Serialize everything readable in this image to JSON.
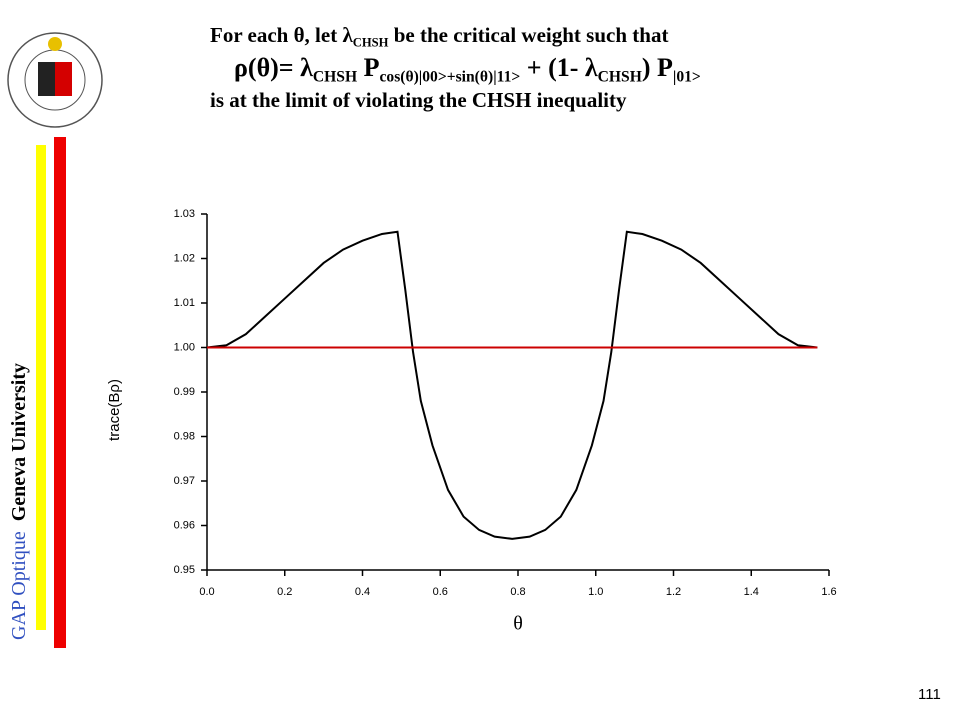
{
  "slide": {
    "title_lines": [
      [
        {
          "text": "For each θ, let λ"
        },
        {
          "sub": "CHSH"
        },
        {
          "text": " be the critical weight such that"
        }
      ],
      [
        {
          "text": "ρ(θ)= λ"
        },
        {
          "sub": "CHSH"
        },
        {
          "text": " P"
        },
        {
          "sub": "cos(θ)|00>+sin(θ)|11>"
        },
        {
          "text": " + (1- λ"
        },
        {
          "sub": "CHSH"
        },
        {
          "text": ") P"
        },
        {
          "sub": "|01>"
        }
      ],
      [
        {
          "text": "is at the limit of violating the CHSH inequality"
        }
      ]
    ],
    "side_group": "GAP Optique",
    "side_university": "Geneva University",
    "page_number": "111"
  },
  "chart_data": {
    "type": "line",
    "x_label": "θ",
    "y_label": "trace(Bρ)",
    "xlim": [
      0,
      1.6
    ],
    "ylim": [
      0.95,
      1.03
    ],
    "xticks": [
      {
        "value": 0,
        "label": "0.0"
      },
      0.2,
      0.4,
      0.6,
      0.8,
      {
        "value": 1,
        "label": "1.0"
      },
      1.2,
      1.4,
      1.6
    ],
    "yticks": [
      0.95,
      0.96,
      0.97,
      0.98,
      0.99,
      {
        "value": 1,
        "label": "1.00"
      },
      1.01,
      1.02,
      1.03
    ],
    "series": [
      {
        "color": "#000000",
        "x": [
          0,
          0.05,
          0.1,
          0.15,
          0.2,
          0.25,
          0.3,
          0.35,
          0.4,
          0.45,
          0.49,
          0.51,
          0.53,
          0.55,
          0.58,
          0.62,
          0.66,
          0.7,
          0.74,
          0.785,
          0.83,
          0.87,
          0.91,
          0.95,
          0.99,
          1.02,
          1.04,
          1.06,
          1.08,
          1.12,
          1.17,
          1.22,
          1.27,
          1.32,
          1.37,
          1.42,
          1.47,
          1.52,
          1.57
        ],
        "values": [
          1.0,
          1.0005,
          1.003,
          1.007,
          1.011,
          1.015,
          1.019,
          1.022,
          1.024,
          1.0255,
          1.026,
          1.013,
          0.999,
          0.988,
          0.978,
          0.968,
          0.962,
          0.959,
          0.9575,
          0.957,
          0.9575,
          0.959,
          0.962,
          0.968,
          0.978,
          0.988,
          0.999,
          1.013,
          1.026,
          1.0255,
          1.024,
          1.022,
          1.019,
          1.015,
          1.011,
          1.007,
          1.003,
          1.0005,
          1.0
        ]
      },
      {
        "color": "#cc0000",
        "x": [
          0,
          1.57
        ],
        "values": [
          1,
          1
        ]
      }
    ]
  }
}
